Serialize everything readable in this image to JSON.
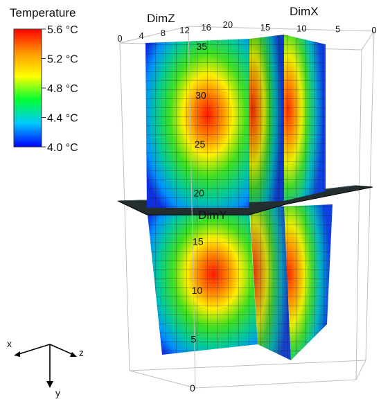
{
  "chart_data": {
    "type": "heatmap",
    "variant": "3d-volume-slices",
    "legend": {
      "title": "Temperature",
      "placement": "top-left",
      "tick_labels": [
        "5.6 °C",
        "5.2 °C",
        "4.8 °C",
        "4.4 °C",
        "4.0 °C"
      ],
      "range": [
        4.0,
        5.6
      ],
      "colormap": [
        "#0000ff",
        "#00c8ff",
        "#00ff32",
        "#ffff00",
        "#ff9600",
        "#ff0000"
      ]
    },
    "axes": {
      "x": {
        "label": "DimX",
        "ticks": [
          "15",
          "10",
          "5",
          "0"
        ],
        "range": [
          0,
          15
        ]
      },
      "y": {
        "label": "DimY",
        "ticks": [
          "0",
          "5",
          "10",
          "15",
          "20",
          "25",
          "30",
          "35"
        ],
        "range": [
          0,
          35
        ]
      },
      "z": {
        "label": "DimZ",
        "ticks": [
          "0",
          "4",
          "8",
          "12",
          "16",
          "20"
        ],
        "range": [
          0,
          24
        ]
      }
    },
    "orientation": {
      "x": "x",
      "y": "y",
      "z": "z"
    },
    "slices": [
      {
        "name": "z-slice",
        "peak_temp": 5.6,
        "peak_y": 21,
        "min_temp": 4.0
      },
      {
        "name": "x-slice",
        "peak_temp": 5.5,
        "peak_y": 20,
        "min_temp": 4.0
      },
      {
        "name": "y-slice",
        "at_y": 19
      }
    ]
  }
}
